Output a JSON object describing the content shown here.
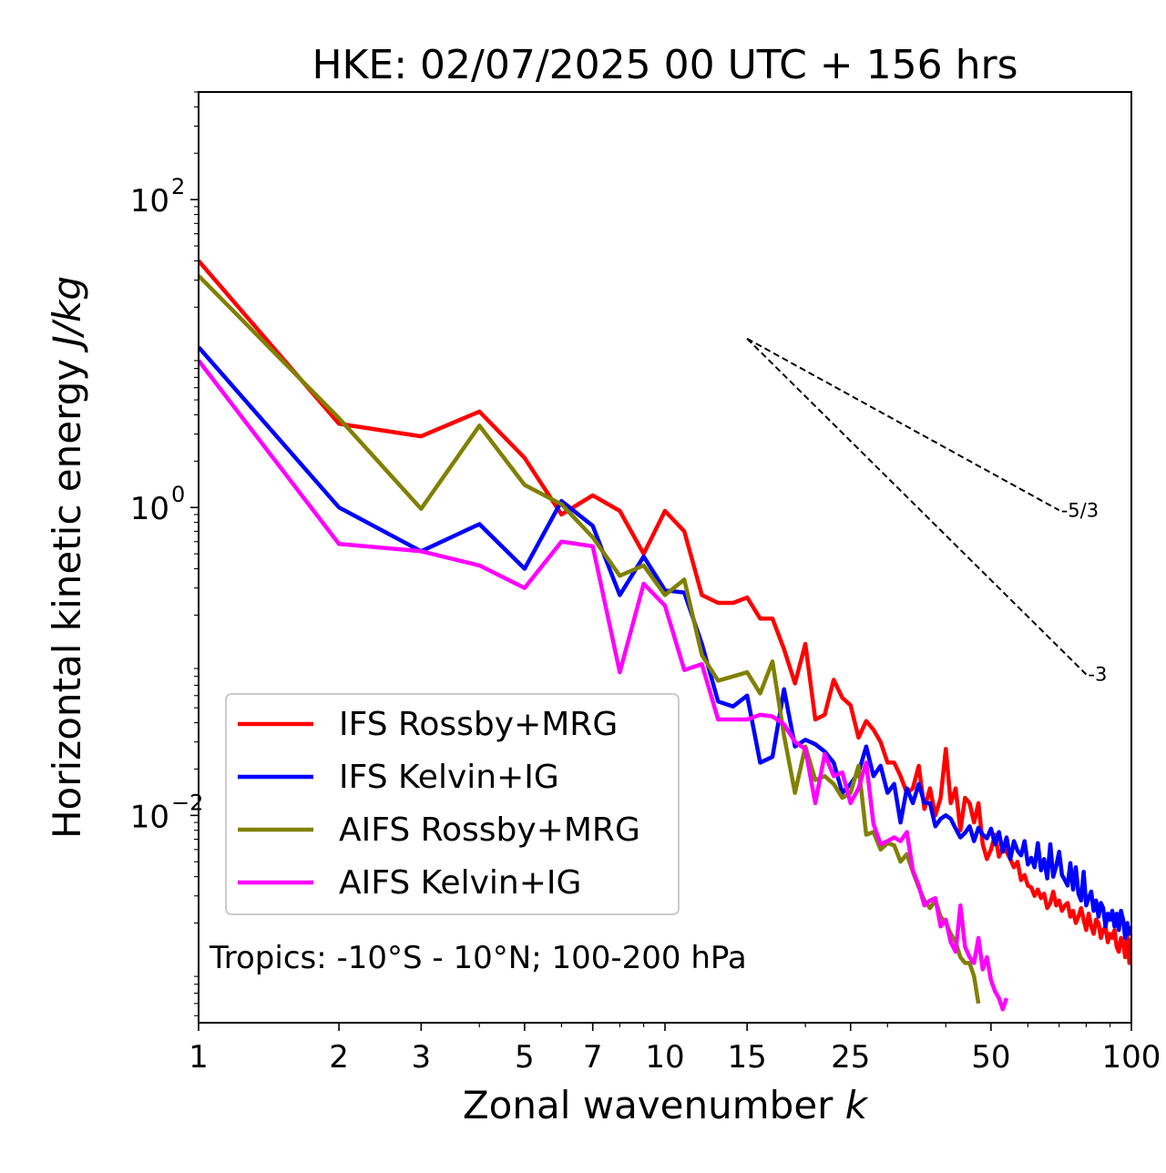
{
  "chart_data": {
    "type": "line",
    "title": "HKE: 02/07/2025 00 UTC + 156 hrs",
    "xlabel_text": "Zonal wavenumber ",
    "xlabel_var": "k",
    "ylabel_text": "Horizontal kinetic energy ",
    "ylabel_unit": "J/kg",
    "xscale": "log",
    "yscale": "log",
    "xlim": [
      1,
      100
    ],
    "ylim": [
      0.00045,
      500
    ],
    "xticks": [
      {
        "value": 1,
        "label": "1"
      },
      {
        "value": 2,
        "label": "2"
      },
      {
        "value": 3,
        "label": "3"
      },
      {
        "value": 5,
        "label": "5"
      },
      {
        "value": 7,
        "label": "7"
      },
      {
        "value": 10,
        "label": "10"
      },
      {
        "value": 15,
        "label": "15"
      },
      {
        "value": 25,
        "label": "25"
      },
      {
        "value": 50,
        "label": "50"
      },
      {
        "value": 100,
        "label": "100"
      }
    ],
    "yticks": [
      {
        "value": 0.01,
        "base": "10",
        "exp": "−2"
      },
      {
        "value": 1,
        "base": "10",
        "exp": "0"
      },
      {
        "value": 100,
        "base": "10",
        "exp": "2"
      }
    ],
    "annotation": "Tropics: -10°S - 10°N; 100-200 hPa",
    "legend_position": "lower-left",
    "reference_slopes": [
      {
        "label": "-5/3",
        "slope": -1.6667,
        "x0": 15,
        "y0": 12.5,
        "x1": 70
      },
      {
        "label": "-3",
        "slope": -3,
        "x0": 15,
        "y0": 12.5,
        "x1": 80
      }
    ],
    "series": [
      {
        "name": "IFS Rossby+MRG",
        "color": "#ff0000",
        "x": [
          1,
          2,
          3,
          4,
          5,
          6,
          7,
          8,
          9,
          10,
          11,
          12,
          13,
          14,
          15,
          16,
          17,
          18,
          19,
          20,
          21,
          22,
          23,
          24,
          25,
          26,
          27,
          28,
          29,
          30,
          31,
          32,
          33,
          34,
          35,
          36,
          37,
          38,
          39,
          40,
          41,
          42,
          43,
          44,
          45,
          46,
          47,
          48,
          49,
          50,
          51,
          52,
          53,
          54,
          55,
          56,
          57,
          58,
          59,
          60,
          61,
          62,
          63,
          64,
          65,
          66,
          67,
          68,
          69,
          70,
          71,
          72,
          73,
          74,
          75,
          76,
          77,
          78,
          79,
          80,
          81,
          82,
          83,
          84,
          85,
          86,
          87,
          88,
          89,
          90,
          91,
          92,
          93,
          94,
          95,
          96,
          97,
          98,
          99,
          100
        ],
        "y": [
          40,
          3.5,
          2.9,
          4.2,
          2.1,
          0.9,
          1.2,
          0.95,
          0.5,
          0.95,
          0.7,
          0.27,
          0.24,
          0.24,
          0.26,
          0.19,
          0.19,
          0.12,
          0.072,
          0.13,
          0.042,
          0.045,
          0.076,
          0.058,
          0.052,
          0.032,
          0.041,
          0.036,
          0.03,
          0.022,
          0.022,
          0.018,
          0.014,
          0.015,
          0.021,
          0.011,
          0.015,
          0.01,
          0.013,
          0.027,
          0.012,
          0.015,
          0.008,
          0.013,
          0.012,
          0.009,
          0.012,
          0.0065,
          0.0052,
          0.006,
          0.0075,
          0.0054,
          0.0062,
          0.0058,
          0.0052,
          0.0046,
          0.005,
          0.0038,
          0.0041,
          0.0035,
          0.0034,
          0.003,
          0.0033,
          0.0029,
          0.0031,
          0.0025,
          0.0027,
          0.0032,
          0.0026,
          0.0028,
          0.0024,
          0.0026,
          0.0027,
          0.0022,
          0.0024,
          0.002,
          0.0022,
          0.0025,
          0.0021,
          0.0018,
          0.0023,
          0.0019,
          0.0017,
          0.0021,
          0.002,
          0.0016,
          0.0018,
          0.0019,
          0.0015,
          0.0017,
          0.0016,
          0.0018,
          0.0014,
          0.0013,
          0.0016,
          0.0015,
          0.0012,
          0.0017,
          0.0011,
          0.0016
        ]
      },
      {
        "name": "IFS Kelvin+IG",
        "color": "#0000ff",
        "x": [
          1,
          2,
          3,
          4,
          5,
          6,
          7,
          8,
          9,
          10,
          11,
          12,
          13,
          14,
          15,
          16,
          17,
          18,
          19,
          20,
          21,
          22,
          23,
          24,
          25,
          26,
          27,
          28,
          29,
          30,
          31,
          32,
          33,
          34,
          35,
          36,
          37,
          38,
          39,
          40,
          41,
          42,
          43,
          44,
          45,
          46,
          47,
          48,
          49,
          50,
          51,
          52,
          53,
          54,
          55,
          56,
          57,
          58,
          59,
          60,
          61,
          62,
          63,
          64,
          65,
          66,
          67,
          68,
          69,
          70,
          71,
          72,
          73,
          74,
          75,
          76,
          77,
          78,
          79,
          80,
          81,
          82,
          83,
          84,
          85,
          86,
          87,
          88,
          89,
          90,
          91,
          92,
          93,
          94,
          95,
          96,
          97,
          98,
          99,
          100
        ],
        "y": [
          11,
          1.0,
          0.52,
          0.78,
          0.4,
          1.1,
          0.76,
          0.27,
          0.48,
          0.29,
          0.28,
          0.13,
          0.055,
          0.051,
          0.06,
          0.022,
          0.024,
          0.066,
          0.028,
          0.031,
          0.029,
          0.026,
          0.022,
          0.014,
          0.016,
          0.019,
          0.028,
          0.018,
          0.021,
          0.014,
          0.016,
          0.009,
          0.015,
          0.012,
          0.016,
          0.012,
          0.012,
          0.0085,
          0.0095,
          0.01,
          0.0095,
          0.0082,
          0.0072,
          0.0077,
          0.0085,
          0.0068,
          0.0083,
          0.0075,
          0.0071,
          0.0082,
          0.0065,
          0.0078,
          0.0058,
          0.0072,
          0.0052,
          0.0068,
          0.0059,
          0.0055,
          0.0068,
          0.0048,
          0.0053,
          0.0046,
          0.0066,
          0.0044,
          0.0052,
          0.0039,
          0.0065,
          0.004,
          0.0047,
          0.0058,
          0.0041,
          0.0038,
          0.0035,
          0.0049,
          0.0033,
          0.0046,
          0.0031,
          0.0028,
          0.0043,
          0.0026,
          0.0029,
          0.0032,
          0.0024,
          0.0028,
          0.0022,
          0.0027,
          0.0025,
          0.0019,
          0.0023,
          0.0021,
          0.0024,
          0.0019,
          0.0023,
          0.0018,
          0.0024,
          0.0021,
          0.0016,
          0.002,
          0.0017,
          0.0019
        ]
      },
      {
        "name": "AIFS Rossby+MRG",
        "color": "#808000",
        "x": [
          1,
          2,
          3,
          4,
          5,
          6,
          7,
          8,
          9,
          10,
          11,
          12,
          13,
          14,
          15,
          16,
          17,
          18,
          19,
          20,
          21,
          22,
          23,
          24,
          25,
          26,
          27,
          28,
          29,
          30,
          31,
          32,
          33,
          34,
          35,
          36,
          37,
          38,
          39,
          40,
          41,
          42,
          43,
          44,
          45,
          46,
          47
        ],
        "y": [
          32,
          3.8,
          0.98,
          3.4,
          1.4,
          1.05,
          0.64,
          0.36,
          0.42,
          0.27,
          0.34,
          0.11,
          0.075,
          0.08,
          0.085,
          0.062,
          0.1,
          0.033,
          0.014,
          0.028,
          0.017,
          0.018,
          0.016,
          0.013,
          0.014,
          0.021,
          0.0075,
          0.0078,
          0.006,
          0.0066,
          0.0064,
          0.005,
          0.0056,
          0.0043,
          0.0034,
          0.0028,
          0.0025,
          0.0028,
          0.0022,
          0.002,
          0.0017,
          0.0015,
          0.0012,
          0.0011,
          0.0011,
          0.0009,
          0.0006
        ]
      },
      {
        "name": "AIFS Kelvin+IG",
        "color": "#ff00ff",
        "x": [
          1,
          2,
          3,
          4,
          5,
          6,
          7,
          8,
          9,
          10,
          11,
          12,
          13,
          14,
          15,
          16,
          17,
          18,
          19,
          20,
          21,
          22,
          23,
          24,
          25,
          26,
          27,
          28,
          29,
          30,
          31,
          32,
          33,
          34,
          35,
          36,
          37,
          38,
          39,
          40,
          41,
          42,
          43,
          44,
          45,
          46,
          47,
          48,
          49,
          50,
          51,
          52,
          53,
          54
        ],
        "y": [
          9,
          0.58,
          0.52,
          0.42,
          0.3,
          0.6,
          0.56,
          0.085,
          0.32,
          0.23,
          0.088,
          0.096,
          0.042,
          0.042,
          0.042,
          0.045,
          0.044,
          0.039,
          0.03,
          0.027,
          0.012,
          0.025,
          0.018,
          0.019,
          0.012,
          0.015,
          0.022,
          0.0088,
          0.0065,
          0.0068,
          0.0072,
          0.0068,
          0.0078,
          0.0044,
          0.0035,
          0.0026,
          0.0028,
          0.0029,
          0.0019,
          0.0021,
          0.0015,
          0.0013,
          0.0026,
          0.0014,
          0.0012,
          0.0011,
          0.0016,
          0.001,
          0.0012,
          0.00085,
          0.00072,
          0.00065,
          0.00055,
          0.00065
        ]
      }
    ]
  }
}
